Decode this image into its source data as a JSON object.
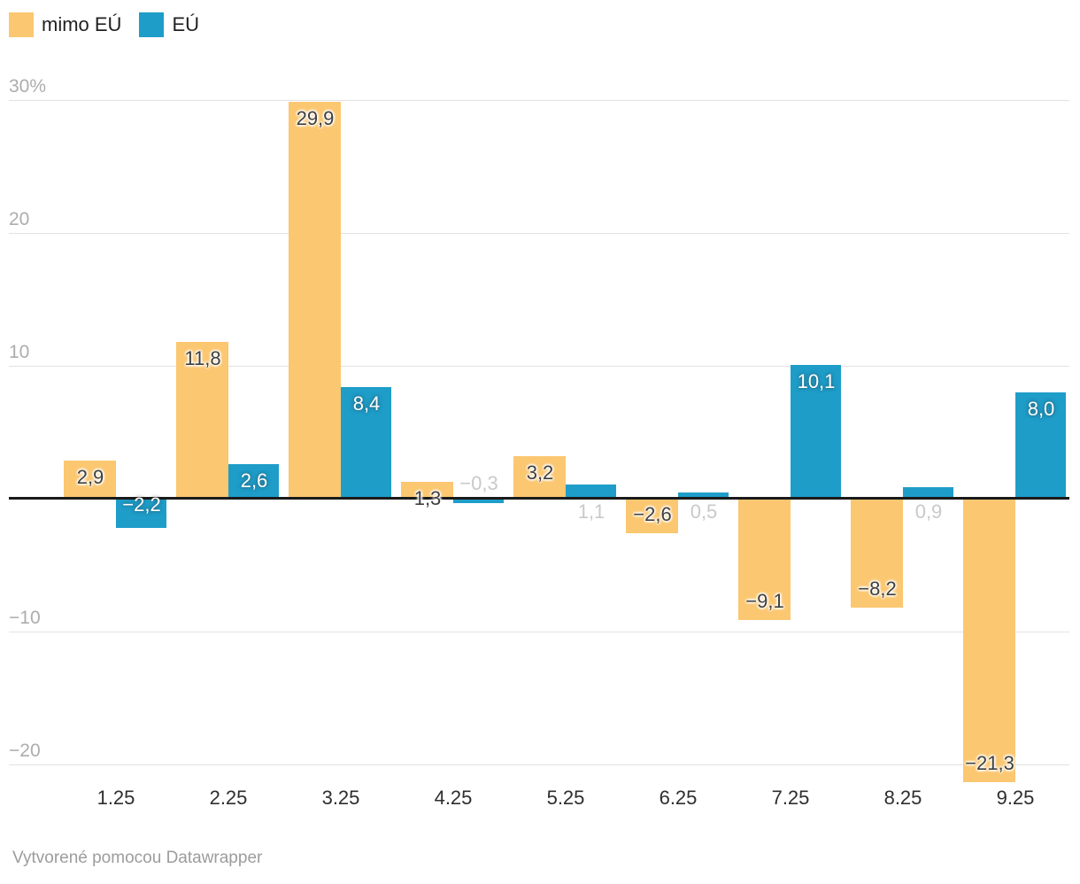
{
  "legend": {
    "items": [
      {
        "label": "mimo EÚ",
        "color": "#fbc770"
      },
      {
        "label": "EÚ",
        "color": "#1e9dc9"
      }
    ]
  },
  "chart_data": {
    "type": "bar",
    "title": "",
    "categories": [
      "1.25",
      "2.25",
      "3.25",
      "4.25",
      "5.25",
      "6.25",
      "7.25",
      "8.25",
      "9.25"
    ],
    "series": [
      {
        "name": "mimo EÚ",
        "key": "mimo-eu",
        "color": "#fbc770",
        "values": [
          2.9,
          11.8,
          29.9,
          1.3,
          3.2,
          -2.6,
          -9.1,
          -8.2,
          -21.3
        ],
        "labels": [
          "2,9",
          "11,8",
          "29,9",
          "1,3",
          "3,2",
          "−2,6",
          "−9,1",
          "−8,2",
          "−21,3"
        ]
      },
      {
        "name": "EÚ",
        "key": "eu",
        "color": "#1e9dc9",
        "values": [
          -2.2,
          2.6,
          8.4,
          -0.3,
          1.1,
          0.5,
          10.1,
          0.9,
          8.0
        ],
        "labels": [
          "−2,2",
          "2,6",
          "8,4",
          "−0,3",
          "1,1",
          "0,5",
          "10,1",
          "0,9",
          "8,0"
        ]
      }
    ],
    "y_ticks": [
      {
        "label": "30%",
        "value": 30
      },
      {
        "label": "20",
        "value": 20
      },
      {
        "label": "10",
        "value": 10
      },
      {
        "label": "−10",
        "value": -10
      },
      {
        "label": "−20",
        "value": -20
      }
    ],
    "ylim": [
      -22,
      31
    ],
    "grid": "horizontal",
    "legend_position": "top-left",
    "value_labels": true,
    "unit": "%"
  },
  "footer": {
    "prefix": "Vytvorené pomocou ",
    "link": "Datawrapper"
  },
  "colors": {
    "mimo_eu": "#fbc770",
    "eu": "#1e9dc9",
    "grid": "#e2e2e2",
    "zero_line": "#1a1a1a",
    "y_tick_label": "#adadad",
    "x_tick_label": "#2e2e2e",
    "footer_text": "#9c9c9c",
    "label_dark": "#3f3f3f",
    "label_light_gray": "#c9c9c9",
    "label_white": "#ffffff",
    "background": "#ffffff"
  }
}
